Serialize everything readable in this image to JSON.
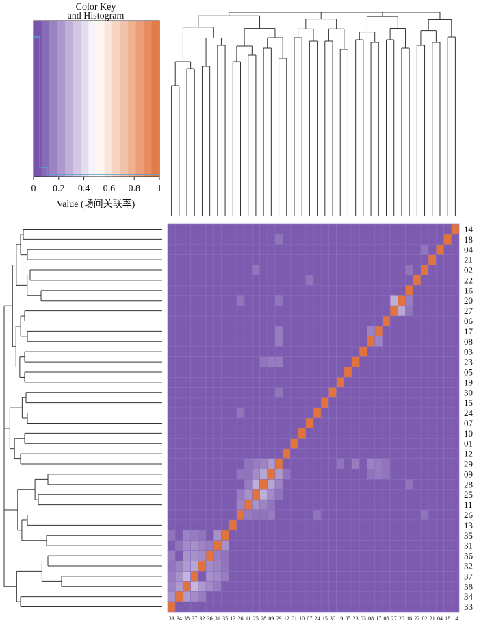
{
  "color_key": {
    "title_line1": "Color Key",
    "title_line2": "and Histogram",
    "xlabel": "Value (场间关联率)",
    "ticks": [
      "0",
      "0.2",
      "0.4",
      "0.6",
      "0.8",
      "1"
    ],
    "tick_values": [
      0,
      0.2,
      0.4,
      0.6,
      0.8,
      1
    ],
    "low_color": "#6e4aa6",
    "mid_color": "#ffffff",
    "high_color": "#e0743c",
    "histogram_color": "#4f9fd8"
  },
  "chart_data": {
    "type": "heatmap",
    "title": "",
    "value_range": [
      0,
      1
    ],
    "row_labels": [
      "14",
      "18",
      "04",
      "21",
      "02",
      "22",
      "16",
      "20",
      "27",
      "06",
      "17",
      "08",
      "03",
      "23",
      "05",
      "19",
      "30",
      "15",
      "24",
      "07",
      "10",
      "01",
      "12",
      "29",
      "09",
      "28",
      "25",
      "11",
      "26",
      "13",
      "35",
      "31",
      "36",
      "32",
      "37",
      "38",
      "34",
      "33"
    ],
    "col_labels": [
      "33",
      "34",
      "38",
      "37",
      "32",
      "36",
      "31",
      "35",
      "13",
      "26",
      "11",
      "25",
      "28",
      "09",
      "29",
      "12",
      "01",
      "10",
      "07",
      "24",
      "15",
      "30",
      "19",
      "05",
      "23",
      "03",
      "08",
      "17",
      "06",
      "27",
      "20",
      "16",
      "22",
      "02",
      "21",
      "04",
      "18",
      "14"
    ],
    "diagonal_value": 1.0,
    "background_value": 0.05,
    "highlights": [
      {
        "row": "35",
        "col": "33",
        "value": 0.12
      },
      {
        "row": "35",
        "col": "38",
        "value": 0.16
      },
      {
        "row": "35",
        "col": "37",
        "value": 0.14
      },
      {
        "row": "35",
        "col": "32",
        "value": 0.12
      },
      {
        "row": "35",
        "col": "31",
        "value": 0.2
      },
      {
        "row": "31",
        "col": "34",
        "value": 0.12
      },
      {
        "row": "31",
        "col": "38",
        "value": 0.18
      },
      {
        "row": "31",
        "col": "37",
        "value": 0.2
      },
      {
        "row": "31",
        "col": "32",
        "value": 0.16
      },
      {
        "row": "31",
        "col": "36",
        "value": 0.14
      },
      {
        "row": "31",
        "col": "35",
        "value": 0.2
      },
      {
        "row": "36",
        "col": "33",
        "value": 0.14
      },
      {
        "row": "36",
        "col": "38",
        "value": 0.2
      },
      {
        "row": "36",
        "col": "37",
        "value": 0.2
      },
      {
        "row": "36",
        "col": "32",
        "value": 0.18
      },
      {
        "row": "36",
        "col": "31",
        "value": 0.14
      },
      {
        "row": "36",
        "col": "35",
        "value": 0.12
      },
      {
        "row": "32",
        "col": "33",
        "value": 0.12
      },
      {
        "row": "32",
        "col": "34",
        "value": 0.16
      },
      {
        "row": "32",
        "col": "38",
        "value": 0.22
      },
      {
        "row": "32",
        "col": "37",
        "value": 0.25
      },
      {
        "row": "32",
        "col": "36",
        "value": 0.18
      },
      {
        "row": "32",
        "col": "31",
        "value": 0.16
      },
      {
        "row": "32",
        "col": "35",
        "value": 0.12
      },
      {
        "row": "37",
        "col": "33",
        "value": 0.14
      },
      {
        "row": "37",
        "col": "34",
        "value": 0.2
      },
      {
        "row": "37",
        "col": "38",
        "value": 0.3
      },
      {
        "row": "37",
        "col": "36",
        "value": 0.2
      },
      {
        "row": "37",
        "col": "31",
        "value": 0.18
      },
      {
        "row": "37",
        "col": "35",
        "value": 0.14
      },
      {
        "row": "38",
        "col": "33",
        "value": 0.16
      },
      {
        "row": "38",
        "col": "34",
        "value": 0.22
      },
      {
        "row": "38",
        "col": "37",
        "value": 0.3
      },
      {
        "row": "38",
        "col": "32",
        "value": 0.22
      },
      {
        "row": "38",
        "col": "36",
        "value": 0.18
      },
      {
        "row": "38",
        "col": "31",
        "value": 0.14
      },
      {
        "row": "34",
        "col": "33",
        "value": 0.2
      },
      {
        "row": "34",
        "col": "38",
        "value": 0.22
      },
      {
        "row": "34",
        "col": "37",
        "value": 0.18
      },
      {
        "row": "34",
        "col": "32",
        "value": 0.14
      },
      {
        "row": "26",
        "col": "11",
        "value": 0.14
      },
      {
        "row": "26",
        "col": "25",
        "value": 0.12
      },
      {
        "row": "26",
        "col": "28",
        "value": 0.12
      },
      {
        "row": "26",
        "col": "09",
        "value": 0.14
      },
      {
        "row": "26",
        "col": "24",
        "value": 0.12
      },
      {
        "row": "26",
        "col": "02",
        "value": 0.12
      },
      {
        "row": "11",
        "col": "26",
        "value": 0.16
      },
      {
        "row": "11",
        "col": "25",
        "value": 0.2
      },
      {
        "row": "11",
        "col": "28",
        "value": 0.16
      },
      {
        "row": "11",
        "col": "09",
        "value": 0.12
      },
      {
        "row": "25",
        "col": "26",
        "value": 0.14
      },
      {
        "row": "25",
        "col": "11",
        "value": 0.2
      },
      {
        "row": "25",
        "col": "28",
        "value": 0.28
      },
      {
        "row": "25",
        "col": "09",
        "value": 0.18
      },
      {
        "row": "25",
        "col": "29",
        "value": 0.12
      },
      {
        "row": "28",
        "col": "11",
        "value": 0.14
      },
      {
        "row": "28",
        "col": "25",
        "value": 0.28
      },
      {
        "row": "28",
        "col": "09",
        "value": 0.25
      },
      {
        "row": "28",
        "col": "29",
        "value": 0.16
      },
      {
        "row": "28",
        "col": "16",
        "value": 0.12
      },
      {
        "row": "09",
        "col": "26",
        "value": 0.12
      },
      {
        "row": "09",
        "col": "11",
        "value": 0.12
      },
      {
        "row": "09",
        "col": "25",
        "value": 0.18
      },
      {
        "row": "09",
        "col": "28",
        "value": 0.25
      },
      {
        "row": "09",
        "col": "29",
        "value": 0.22
      },
      {
        "row": "09",
        "col": "12",
        "value": 0.12
      },
      {
        "row": "09",
        "col": "08",
        "value": 0.12
      },
      {
        "row": "09",
        "col": "17",
        "value": 0.14
      },
      {
        "row": "09",
        "col": "06",
        "value": 0.12
      },
      {
        "row": "29",
        "col": "11",
        "value": 0.12
      },
      {
        "row": "29",
        "col": "25",
        "value": 0.14
      },
      {
        "row": "29",
        "col": "28",
        "value": 0.16
      },
      {
        "row": "29",
        "col": "09",
        "value": 0.22
      },
      {
        "row": "29",
        "col": "19",
        "value": 0.12
      },
      {
        "row": "29",
        "col": "23",
        "value": 0.14
      },
      {
        "row": "29",
        "col": "08",
        "value": 0.16
      },
      {
        "row": "29",
        "col": "17",
        "value": 0.14
      },
      {
        "row": "29",
        "col": "06",
        "value": 0.12
      },
      {
        "row": "20",
        "col": "26",
        "value": 0.12
      },
      {
        "row": "20",
        "col": "29",
        "value": 0.12
      },
      {
        "row": "20",
        "col": "27",
        "value": 0.28
      },
      {
        "row": "20",
        "col": "16",
        "value": 0.14
      },
      {
        "row": "27",
        "col": "20",
        "value": 0.26
      },
      {
        "row": "27",
        "col": "16",
        "value": 0.12
      },
      {
        "row": "17",
        "col": "29",
        "value": 0.14
      },
      {
        "row": "17",
        "col": "08",
        "value": 0.16
      },
      {
        "row": "08",
        "col": "29",
        "value": 0.14
      },
      {
        "row": "08",
        "col": "17",
        "value": 0.16
      },
      {
        "row": "23",
        "col": "28",
        "value": 0.12
      },
      {
        "row": "23",
        "col": "09",
        "value": 0.14
      },
      {
        "row": "23",
        "col": "29",
        "value": 0.14
      },
      {
        "row": "18",
        "col": "29",
        "value": 0.12
      },
      {
        "row": "04",
        "col": "02",
        "value": 0.12
      },
      {
        "row": "02",
        "col": "25",
        "value": 0.12
      },
      {
        "row": "02",
        "col": "16",
        "value": 0.12
      },
      {
        "row": "22",
        "col": "07",
        "value": 0.12
      },
      {
        "row": "22",
        "col": "22",
        "value": 1.0
      },
      {
        "row": "30",
        "col": "29",
        "value": 0.12
      },
      {
        "row": "24",
        "col": "26",
        "value": 0.12
      }
    ]
  }
}
